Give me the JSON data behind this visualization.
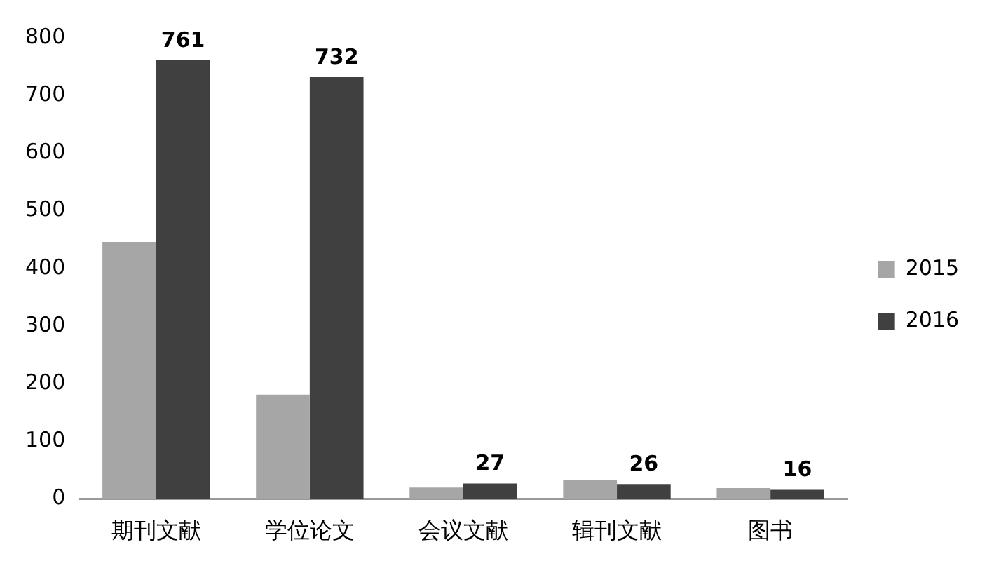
{
  "chart_data": {
    "type": "bar",
    "categories": [
      "期刊文献",
      "学位论文",
      "会议文献",
      "辑刊文献",
      "图书"
    ],
    "series": [
      {
        "name": "2015",
        "color": "#a6a6a6",
        "values": [
          446,
          181,
          20,
          33,
          19
        ]
      },
      {
        "name": "2016",
        "color": "#404040",
        "values": [
          761,
          732,
          27,
          26,
          16
        ],
        "value_labels": [
          "761",
          "732",
          "27",
          "26",
          "16"
        ]
      }
    ],
    "ylim": [
      0,
      800
    ],
    "yticks": [
      0,
      100,
      200,
      300,
      400,
      500,
      600,
      700,
      800
    ],
    "grid": false,
    "legend": "right"
  }
}
